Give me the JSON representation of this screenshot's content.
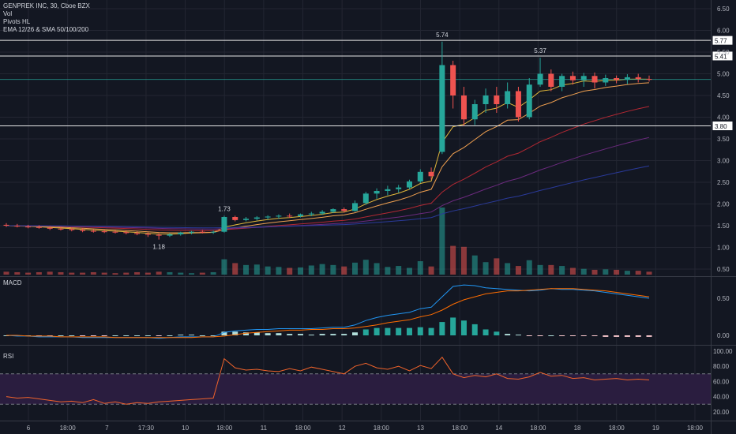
{
  "legend": {
    "symbol_line": "GENPREK INC, 30, Cboe BZX",
    "vol": "Vol",
    "pivots": "Pivots HL",
    "ema_sma": "EMA 12/26 & SMA 50/100/200"
  },
  "panes": {
    "macd_label": "MACD",
    "rsi_label": "RSI"
  },
  "colors": {
    "background": "#131722",
    "grid": "#232632",
    "axis_text": "#b2b5be",
    "up": "#26a69a",
    "down": "#ef5350",
    "ema12": "#e0b63a",
    "ema26": "#f0a050",
    "sma50": "#b22833",
    "sma100": "#6b2a7e",
    "sma200": "#2a3a9a",
    "macd": "#2196f3",
    "signal": "#ff6d00",
    "rsi": "#f0632b",
    "rsi_band": "#2a1d3f"
  },
  "chart_data": {
    "type": "candlestick",
    "price_axis": {
      "ticks": [
        "6.50",
        "6.00",
        "5.50",
        "5.00",
        "4.50",
        "4.00",
        "3.50",
        "3.00",
        "2.50",
        "2.00",
        "1.50",
        "1.00",
        "0.50"
      ]
    },
    "time_axis": {
      "labels": [
        "6",
        "18:00",
        "7",
        "17:30",
        "10",
        "18:00",
        "11",
        "18:00",
        "12",
        "18:00",
        "13",
        "18:00",
        "14",
        "18:00",
        "18",
        "18:00",
        "19",
        "18:00"
      ]
    },
    "horizontal_levels": [
      {
        "value": 5.77,
        "label": "5.77"
      },
      {
        "value": 5.41,
        "label": "5.41"
      },
      {
        "value": 3.8,
        "label": "3.80"
      }
    ],
    "current_price_line": 4.87,
    "pivots": [
      {
        "label": "5.74",
        "value": 5.74,
        "type": "high"
      },
      {
        "label": "5.37",
        "value": 5.37,
        "type": "high"
      },
      {
        "label": "1.73",
        "value": 1.73,
        "type": "high"
      },
      {
        "label": "1.18",
        "value": 1.18,
        "type": "low"
      }
    ],
    "candles": [
      [
        1.52,
        1.56,
        1.47,
        1.5
      ],
      [
        1.5,
        1.54,
        1.46,
        1.48
      ],
      [
        1.48,
        1.52,
        1.44,
        1.47
      ],
      [
        1.47,
        1.51,
        1.43,
        1.45
      ],
      [
        1.45,
        1.49,
        1.4,
        1.43
      ],
      [
        1.43,
        1.47,
        1.39,
        1.42
      ],
      [
        1.42,
        1.46,
        1.37,
        1.4
      ],
      [
        1.4,
        1.44,
        1.35,
        1.38
      ],
      [
        1.38,
        1.42,
        1.34,
        1.37
      ],
      [
        1.37,
        1.41,
        1.33,
        1.36
      ],
      [
        1.36,
        1.4,
        1.32,
        1.35
      ],
      [
        1.35,
        1.39,
        1.3,
        1.33
      ],
      [
        1.33,
        1.37,
        1.28,
        1.31
      ],
      [
        1.31,
        1.35,
        1.24,
        1.29
      ],
      [
        1.29,
        1.33,
        1.18,
        1.27
      ],
      [
        1.27,
        1.33,
        1.24,
        1.3
      ],
      [
        1.3,
        1.36,
        1.27,
        1.34
      ],
      [
        1.34,
        1.38,
        1.3,
        1.36
      ],
      [
        1.36,
        1.4,
        1.32,
        1.35
      ],
      [
        1.35,
        1.39,
        1.31,
        1.36
      ],
      [
        1.36,
        1.73,
        1.34,
        1.7
      ],
      [
        1.7,
        1.73,
        1.6,
        1.63
      ],
      [
        1.63,
        1.7,
        1.6,
        1.66
      ],
      [
        1.66,
        1.72,
        1.62,
        1.69
      ],
      [
        1.69,
        1.74,
        1.64,
        1.71
      ],
      [
        1.71,
        1.76,
        1.66,
        1.73
      ],
      [
        1.73,
        1.78,
        1.68,
        1.72
      ],
      [
        1.72,
        1.78,
        1.69,
        1.76
      ],
      [
        1.76,
        1.82,
        1.72,
        1.78
      ],
      [
        1.78,
        1.86,
        1.75,
        1.82
      ],
      [
        1.82,
        1.9,
        1.79,
        1.88
      ],
      [
        1.88,
        1.92,
        1.8,
        1.84
      ],
      [
        1.84,
        2.08,
        1.82,
        2.02
      ],
      [
        2.02,
        2.28,
        1.98,
        2.24
      ],
      [
        2.24,
        2.36,
        2.12,
        2.3
      ],
      [
        2.3,
        2.42,
        2.2,
        2.34
      ],
      [
        2.34,
        2.44,
        2.26,
        2.38
      ],
      [
        2.38,
        2.56,
        2.34,
        2.52
      ],
      [
        2.52,
        2.8,
        2.48,
        2.74
      ],
      [
        2.74,
        2.84,
        2.56,
        2.64
      ],
      [
        3.2,
        5.74,
        3.15,
        5.2
      ],
      [
        5.2,
        5.3,
        4.2,
        4.5
      ],
      [
        4.5,
        4.7,
        3.8,
        3.95
      ],
      [
        3.95,
        4.4,
        3.82,
        4.3
      ],
      [
        4.3,
        4.66,
        4.1,
        4.5
      ],
      [
        4.5,
        4.7,
        4.1,
        4.3
      ],
      [
        4.3,
        4.8,
        4.2,
        4.6
      ],
      [
        4.6,
        4.7,
        3.9,
        4.0
      ],
      [
        4.0,
        4.9,
        3.95,
        4.75
      ],
      [
        4.75,
        5.37,
        4.7,
        5.0
      ],
      [
        5.0,
        5.1,
        4.6,
        4.7
      ],
      [
        4.7,
        5.0,
        4.6,
        4.95
      ],
      [
        4.95,
        5.05,
        4.75,
        4.85
      ],
      [
        4.85,
        5.02,
        4.7,
        4.95
      ],
      [
        4.95,
        5.03,
        4.66,
        4.8
      ],
      [
        4.8,
        4.98,
        4.72,
        4.9
      ],
      [
        4.9,
        4.96,
        4.78,
        4.86
      ],
      [
        4.86,
        4.99,
        4.76,
        4.92
      ],
      [
        4.92,
        5.0,
        4.8,
        4.88
      ],
      [
        4.88,
        4.96,
        4.82,
        4.87
      ]
    ],
    "volumes": [
      6,
      5,
      4,
      5,
      6,
      5,
      4,
      4,
      5,
      4,
      3,
      4,
      5,
      4,
      6,
      5,
      4,
      3,
      4,
      5,
      32,
      24,
      20,
      21,
      17,
      16,
      14,
      15,
      19,
      22,
      20,
      17,
      25,
      31,
      24,
      16,
      18,
      14,
      28,
      17,
      140,
      60,
      58,
      40,
      26,
      34,
      24,
      18,
      30,
      20,
      20,
      18,
      14,
      12,
      10,
      11,
      10,
      8,
      8,
      6
    ],
    "macd": {
      "zero_level": 0.0,
      "macd_line": [
        0.0,
        -0.01,
        -0.01,
        -0.02,
        -0.02,
        -0.02,
        -0.02,
        -0.03,
        -0.03,
        -0.03,
        -0.03,
        -0.03,
        -0.03,
        -0.03,
        -0.04,
        -0.03,
        -0.02,
        -0.02,
        -0.02,
        -0.02,
        0.04,
        0.06,
        0.07,
        0.08,
        0.08,
        0.09,
        0.09,
        0.09,
        0.09,
        0.1,
        0.11,
        0.11,
        0.14,
        0.2,
        0.24,
        0.27,
        0.29,
        0.31,
        0.36,
        0.38,
        0.52,
        0.66,
        0.68,
        0.67,
        0.64,
        0.63,
        0.62,
        0.61,
        0.6,
        0.61,
        0.63,
        0.62,
        0.62,
        0.61,
        0.6,
        0.58,
        0.56,
        0.54,
        0.52,
        0.5
      ],
      "signal_line": [
        0.0,
        0.0,
        -0.01,
        -0.01,
        -0.01,
        -0.02,
        -0.02,
        -0.02,
        -0.02,
        -0.02,
        -0.03,
        -0.03,
        -0.03,
        -0.03,
        -0.03,
        -0.03,
        -0.03,
        -0.03,
        -0.02,
        -0.02,
        -0.01,
        0.01,
        0.03,
        0.04,
        0.05,
        0.06,
        0.07,
        0.07,
        0.08,
        0.08,
        0.09,
        0.09,
        0.1,
        0.12,
        0.14,
        0.17,
        0.19,
        0.21,
        0.25,
        0.28,
        0.34,
        0.42,
        0.48,
        0.52,
        0.56,
        0.58,
        0.6,
        0.6,
        0.61,
        0.62,
        0.63,
        0.63,
        0.63,
        0.62,
        0.61,
        0.6,
        0.58,
        0.56,
        0.54,
        0.52
      ],
      "ticks": [
        "0.50",
        "0.00"
      ]
    },
    "rsi": {
      "values": [
        40,
        38,
        39,
        37,
        35,
        33,
        34,
        32,
        36,
        31,
        33,
        30,
        32,
        31,
        33,
        34,
        35,
        36,
        37,
        38,
        90,
        78,
        75,
        76,
        74,
        73,
        77,
        74,
        79,
        76,
        73,
        70,
        80,
        84,
        78,
        76,
        80,
        74,
        81,
        77,
        92,
        70,
        65,
        68,
        66,
        70,
        64,
        63,
        66,
        72,
        67,
        68,
        64,
        65,
        62,
        63,
        64,
        62,
        63,
        62
      ],
      "upper_band": 70,
      "lower_band": 30,
      "ticks": [
        "100.00",
        "80.00",
        "60.00",
        "40.00",
        "20.00"
      ]
    }
  }
}
